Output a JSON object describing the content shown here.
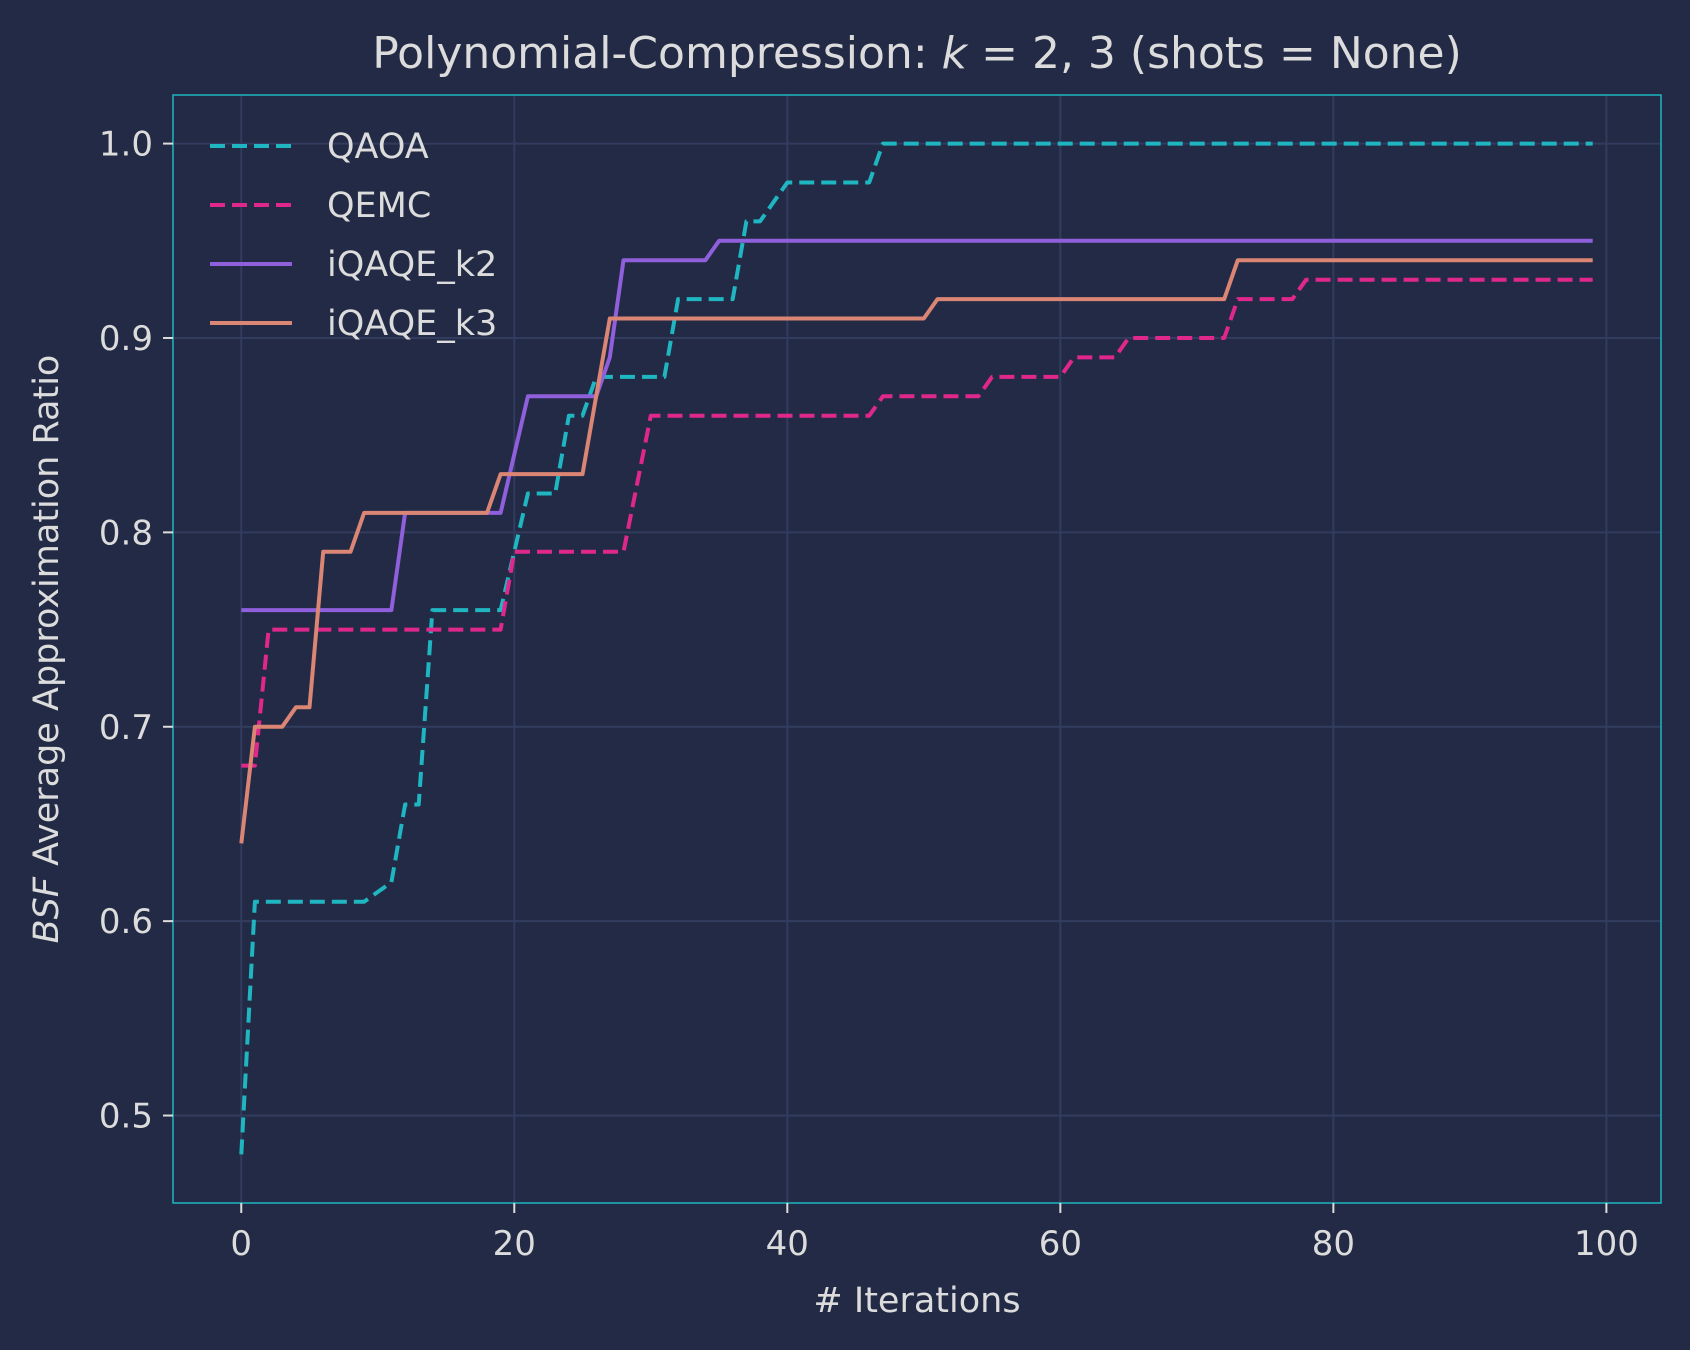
{
  "chart_data": {
    "type": "line",
    "title": "Polynomial-Compression: k = 2, 3 (shots = None)",
    "title_parts": {
      "prefix": "Polynomial-Compression: ",
      "math_var": "k",
      "math_rest": " = 2, 3",
      "suffix": " (shots = None)"
    },
    "xlabel": "# Iterations",
    "ylabel_italic": "BSF",
    "ylabel_rest": " Average Approximation Ratio",
    "xlim": [
      -5,
      104
    ],
    "ylim": [
      0.455,
      1.025
    ],
    "xticks": [
      0,
      20,
      40,
      60,
      80,
      100
    ],
    "yticks": [
      0.5,
      0.6,
      0.7,
      0.8,
      0.9,
      1.0
    ],
    "xtick_labels": [
      "0",
      "20",
      "40",
      "60",
      "80",
      "100"
    ],
    "ytick_labels": [
      "0.5",
      "0.6",
      "0.7",
      "0.8",
      "0.9",
      "1.0"
    ],
    "grid": true,
    "legend_position": "top-left",
    "series": [
      {
        "name": "QAOA",
        "color": "#1fb6c1",
        "style": "dashed",
        "points": [
          [
            0,
            0.48
          ],
          [
            1,
            0.61
          ],
          [
            9,
            0.61
          ],
          [
            11,
            0.62
          ],
          [
            12,
            0.66
          ],
          [
            13,
            0.66
          ],
          [
            14,
            0.76
          ],
          [
            19,
            0.76
          ],
          [
            21,
            0.82
          ],
          [
            23,
            0.82
          ],
          [
            24,
            0.86
          ],
          [
            25,
            0.86
          ],
          [
            26,
            0.88
          ],
          [
            31,
            0.88
          ],
          [
            32,
            0.92
          ],
          [
            36,
            0.92
          ],
          [
            37,
            0.96
          ],
          [
            38,
            0.96
          ],
          [
            40,
            0.98
          ],
          [
            46,
            0.98
          ],
          [
            47,
            1.0
          ],
          [
            99,
            1.0
          ]
        ]
      },
      {
        "name": "QEMC",
        "color": "#e0288c",
        "style": "dashed",
        "points": [
          [
            0,
            0.68
          ],
          [
            1,
            0.68
          ],
          [
            2,
            0.75
          ],
          [
            19,
            0.75
          ],
          [
            20,
            0.79
          ],
          [
            28,
            0.79
          ],
          [
            30,
            0.86
          ],
          [
            46,
            0.86
          ],
          [
            47,
            0.87
          ],
          [
            54,
            0.87
          ],
          [
            55,
            0.88
          ],
          [
            60,
            0.88
          ],
          [
            61,
            0.89
          ],
          [
            64,
            0.89
          ],
          [
            65,
            0.9
          ],
          [
            72,
            0.9
          ],
          [
            73,
            0.92
          ],
          [
            77,
            0.92
          ],
          [
            78,
            0.93
          ],
          [
            99,
            0.93
          ]
        ]
      },
      {
        "name": "iQAQE_k2",
        "color": "#8f5fdc",
        "style": "solid",
        "points": [
          [
            0,
            0.76
          ],
          [
            11,
            0.76
          ],
          [
            12,
            0.81
          ],
          [
            19,
            0.81
          ],
          [
            21,
            0.87
          ],
          [
            26,
            0.87
          ],
          [
            27,
            0.89
          ],
          [
            28,
            0.94
          ],
          [
            34,
            0.94
          ],
          [
            35,
            0.95
          ],
          [
            99,
            0.95
          ]
        ]
      },
      {
        "name": "iQAQE_k3",
        "color": "#db8575",
        "style": "solid",
        "points": [
          [
            0,
            0.64
          ],
          [
            1,
            0.7
          ],
          [
            3,
            0.7
          ],
          [
            4,
            0.71
          ],
          [
            5,
            0.71
          ],
          [
            6,
            0.79
          ],
          [
            8,
            0.79
          ],
          [
            9,
            0.81
          ],
          [
            18,
            0.81
          ],
          [
            19,
            0.83
          ],
          [
            25,
            0.83
          ],
          [
            27,
            0.91
          ],
          [
            50,
            0.91
          ],
          [
            51,
            0.92
          ],
          [
            72,
            0.92
          ],
          [
            73,
            0.94
          ],
          [
            99,
            0.94
          ]
        ]
      }
    ]
  }
}
